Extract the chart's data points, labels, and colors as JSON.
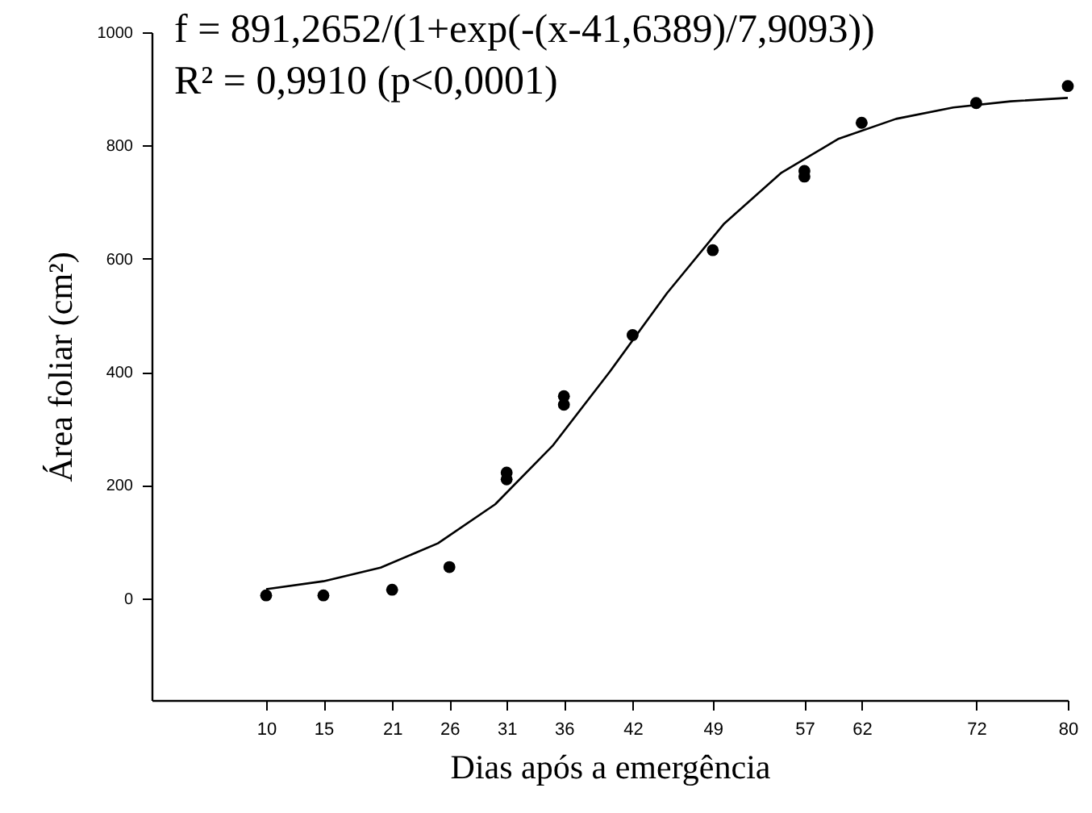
{
  "chart_data": {
    "type": "scatter",
    "xlabel": "Dias após a emergência",
    "ylabel": "Área foliar (cm²)",
    "annotations": [
      "f = 891,2652/(1+exp(-(x-41,6389)/7,9093))",
      "R² = 0,9910 (p<0,0001)"
    ],
    "xlim": [
      0,
      80
    ],
    "xticks": [
      10,
      15,
      21,
      26,
      31,
      36,
      42,
      49,
      57,
      62,
      72,
      80
    ],
    "ylim": [
      -180,
      1000
    ],
    "yticks": [
      0,
      200,
      400,
      600,
      800,
      1000
    ],
    "grid": false,
    "marker": "circle",
    "series": [
      {
        "color": "#000000",
        "x": [
          10,
          15,
          21,
          26,
          31,
          31,
          36,
          36,
          42,
          49,
          57,
          57,
          62,
          72,
          80
        ],
        "values": [
          5,
          5,
          15,
          55,
          210,
          222,
          342,
          357,
          465,
          615,
          745,
          755,
          840,
          875,
          905
        ]
      },
      {
        "type": "line",
        "color": "#000000",
        "line_style": "solid",
        "marker": "none",
        "x": [
          10,
          15,
          20,
          25,
          30,
          35,
          40,
          45,
          50,
          55,
          60,
          65,
          70,
          75,
          80
        ],
        "values": [
          16,
          30,
          54,
          97,
          166,
          269,
          400,
          539,
          662,
          752,
          812,
          847,
          867,
          878,
          884
        ]
      }
    ]
  }
}
